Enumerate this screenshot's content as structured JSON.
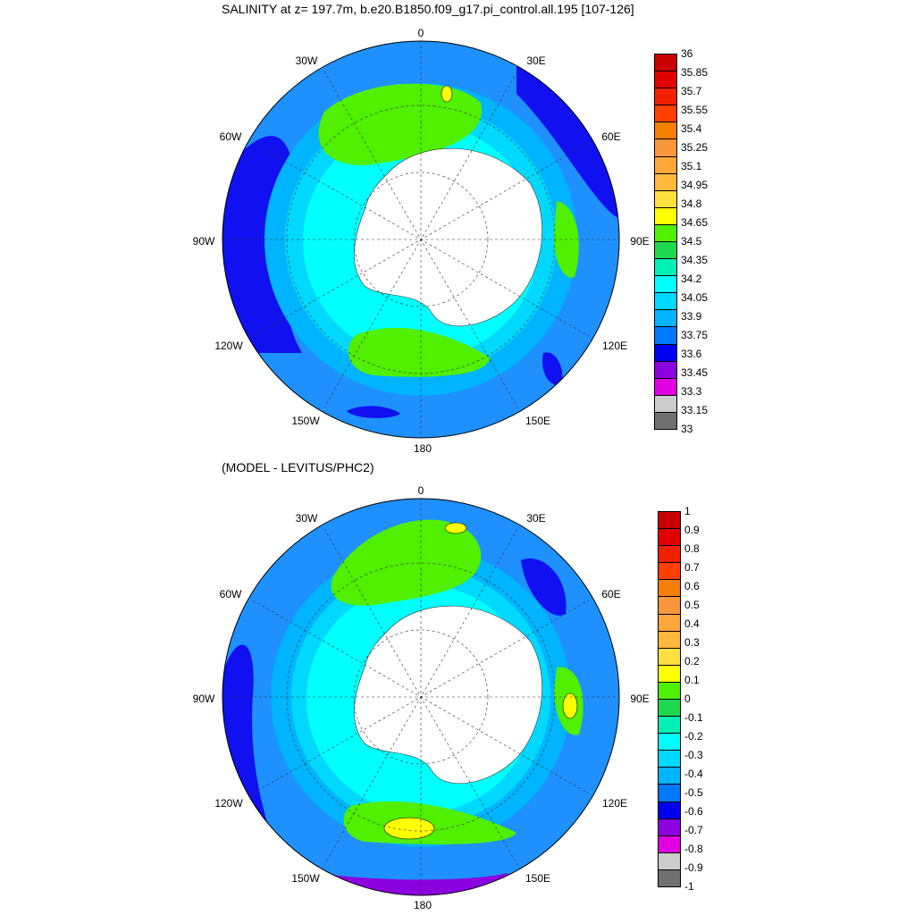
{
  "panel1": {
    "title": "SALINITY at z= 197.7m, b.e20.B1850.f09_g17.pi_control.all.195 [107-126]",
    "lon_labels": [
      "0",
      "30E",
      "60E",
      "90E",
      "120E",
      "150E",
      "180",
      "150W",
      "120W",
      "90W",
      "60W",
      "30W"
    ],
    "colorbar": {
      "labels": [
        "36",
        "35.85",
        "35.7",
        "35.55",
        "35.4",
        "35.25",
        "35.1",
        "34.95",
        "34.8",
        "34.65",
        "34.5",
        "34.35",
        "34.2",
        "34.05",
        "33.9",
        "33.75",
        "33.6",
        "33.45",
        "33.3",
        "33.15",
        "33"
      ],
      "colors": [
        "#c80000",
        "#e00000",
        "#f02000",
        "#ff4000",
        "#f57f00",
        "#f8963c",
        "#fda63c",
        "#ffb83c",
        "#ffe040",
        "#ffff00",
        "#50f000",
        "#1ed850",
        "#00f0b4",
        "#00ffff",
        "#00d8ff",
        "#00b4ff",
        "#0078ff",
        "#0000f0",
        "#8c00e0",
        "#e000e0",
        "#cccccc",
        "#707070"
      ]
    }
  },
  "panel2": {
    "title": "(MODEL - LEVITUS/PHC2)",
    "lon_labels": [
      "0",
      "30E",
      "60E",
      "90E",
      "120E",
      "150E",
      "180",
      "150W",
      "120W",
      "90W",
      "60W",
      "30W"
    ],
    "colorbar": {
      "labels": [
        "1",
        "0.9",
        "0.8",
        "0.7",
        "0.6",
        "0.5",
        "0.4",
        "0.3",
        "0.2",
        "0.1",
        "0",
        "-0.1",
        "-0.2",
        "-0.3",
        "-0.4",
        "-0.5",
        "-0.6",
        "-0.7",
        "-0.8",
        "-0.9",
        "-1"
      ],
      "colors": [
        "#c80000",
        "#e00000",
        "#f02000",
        "#ff4000",
        "#f57f00",
        "#f8963c",
        "#fda63c",
        "#ffb83c",
        "#ffe040",
        "#ffff00",
        "#50f000",
        "#1ed850",
        "#00f0b4",
        "#00ffff",
        "#00d8ff",
        "#00b4ff",
        "#0078ff",
        "#0000f0",
        "#8c00e0",
        "#e000e0",
        "#cccccc",
        "#707070"
      ]
    }
  }
}
